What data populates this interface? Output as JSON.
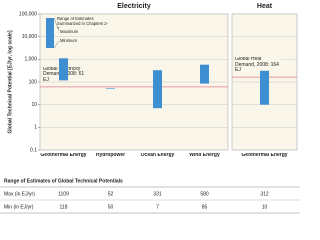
{
  "chart_data": [
    {
      "type": "range_bar",
      "title": "Electricity",
      "ylabel": "Global Technical Potential [EJ/yr, log scale]",
      "yscale": "log",
      "ylim": [
        0.1,
        100000
      ],
      "yticks": [
        0.1,
        1,
        10,
        100,
        {
          "value": 1000,
          "label": "1,000"
        },
        {
          "value": 10000,
          "label": "10,000"
        },
        {
          "value": 100000,
          "label": "100,000"
        }
      ],
      "grid": true,
      "color": "#3d8fd1",
      "legend": {
        "range": "Range of Estimates Summarized in Chapters 2-7",
        "max": "Maximum",
        "min": "Minimum"
      },
      "categories": [
        "Geothermal Energy",
        "Hydropower",
        "Ocean Energy",
        "Wind Energy"
      ],
      "max": [
        1109,
        52,
        331,
        580
      ],
      "min": [
        118,
        50,
        7,
        85
      ],
      "reference_line": {
        "label": "Global Electricity Demand, 2008: 61 EJ",
        "value": 61,
        "color": "#e07b8a"
      }
    },
    {
      "type": "range_bar",
      "title": "Heat",
      "yscale": "log",
      "ylim": [
        0.1,
        100000
      ],
      "color": "#3d8fd1",
      "categories": [
        "Geothermal Energy"
      ],
      "max": [
        312
      ],
      "min": [
        10
      ],
      "reference_line": {
        "label": "Global Heat Demand, 2008: 164 EJ",
        "value": 164,
        "color": "#e07b8a"
      }
    }
  ],
  "table": {
    "title": "Range of Estimates of Global Technical Potentials",
    "row_labels": [
      "Max (in EJ/yr)",
      "Min (in EJ/yr)"
    ]
  }
}
